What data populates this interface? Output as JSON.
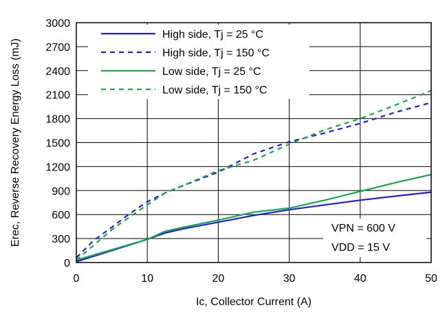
{
  "chart_data": {
    "type": "line",
    "title": "",
    "xlabel": "Ic, Collector Current (A)",
    "ylabel": "Erec, Reverse Recovery Energy Loss (mJ)",
    "xlim": [
      0,
      50
    ],
    "ylim": [
      0,
      3000
    ],
    "xticks": [
      0,
      10,
      20,
      30,
      40,
      50
    ],
    "yticks": [
      0,
      300,
      600,
      900,
      1200,
      1500,
      1800,
      2100,
      2400,
      2700,
      3000
    ],
    "grid": true,
    "legend_position": "top-left",
    "series": [
      {
        "name": "High side, Tj = 25 °C",
        "color": "#1f1fd0",
        "dash": "solid",
        "x": [
          0,
          5,
          10,
          12.5,
          15,
          20,
          25,
          30,
          35,
          40,
          45,
          50
        ],
        "y": [
          10,
          150,
          290,
          370,
          420,
          505,
          590,
          660,
          720,
          780,
          830,
          880
        ]
      },
      {
        "name": "High side, Tj = 150 °C",
        "color": "#1f1fd0",
        "dash": "dashed",
        "x": [
          0,
          2.5,
          5,
          7.5,
          10,
          12.5,
          15,
          20,
          25,
          30,
          35,
          40,
          45,
          50
        ],
        "y": [
          60,
          280,
          440,
          610,
          760,
          870,
          960,
          1130,
          1360,
          1510,
          1620,
          1740,
          1880,
          2000
        ]
      },
      {
        "name": "Low side, Tj = 25 °C",
        "color": "#1aa64a",
        "dash": "solid",
        "x": [
          0,
          5,
          10,
          12.5,
          15,
          20,
          25,
          30,
          35,
          40,
          45,
          50
        ],
        "y": [
          30,
          160,
          290,
          390,
          440,
          530,
          630,
          680,
          780,
          890,
          1000,
          1100
        ]
      },
      {
        "name": "Low side, Tj = 150 °C",
        "color": "#1aa64a",
        "dash": "dashed",
        "x": [
          0,
          2.5,
          5,
          7.5,
          10,
          12.5,
          15,
          20,
          25,
          30,
          35,
          40,
          45,
          50
        ],
        "y": [
          30,
          220,
          410,
          570,
          720,
          870,
          960,
          1150,
          1280,
          1480,
          1660,
          1800,
          1970,
          2150
        ]
      }
    ],
    "annotations": [
      "VPN = 600 V",
      "VDD = 15 V"
    ]
  }
}
